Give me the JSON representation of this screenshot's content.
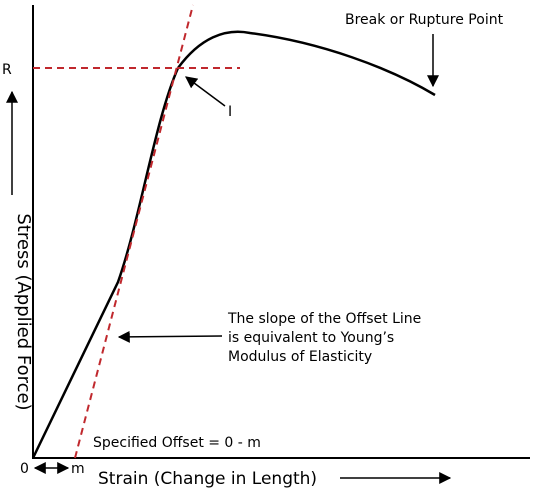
{
  "labels": {
    "rupture": "Break or Rupture Point",
    "r": "R",
    "i": "I",
    "y_axis": "Stress (Applied Force)",
    "note": [
      "The slope of the Offset Line",
      "is equivalent to Young’s",
      "Modulus of Elasticity"
    ],
    "offset": "Specified Offset = 0 - m",
    "origin": "0",
    "m": "m",
    "x_axis": "Strain (Change in Length)"
  }
}
